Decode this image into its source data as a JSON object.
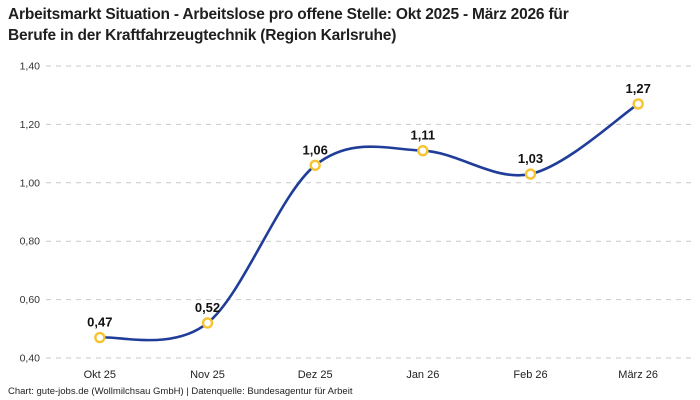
{
  "header": {
    "title_lines": [
      "Arbeitsmarkt Situation - Arbeitslose pro offene Stelle: Okt 2025 - März 2026 für",
      "Berufe in der Kraftfahrzeugtechnik (Region Karlsruhe)"
    ]
  },
  "footer": {
    "credit": "Chart: gute-jobs.de (Wollmilchsau GmbH) | Datenquelle: Bundesagentur für Arbeit"
  },
  "chart_data": {
    "type": "line",
    "title": "Arbeitsmarkt Situation - Arbeitslose pro offene Stelle: Okt 2025 - März 2026 für Berufe in der Kraftfahrzeugtechnik (Region Karlsruhe)",
    "categories": [
      "Okt 25",
      "Nov 25",
      "Dez 25",
      "Jan 26",
      "Feb 26",
      "März 26"
    ],
    "values": [
      0.47,
      0.52,
      1.06,
      1.11,
      1.03,
      1.27
    ],
    "point_labels": [
      "0,47",
      "0,52",
      "1,06",
      "1,11",
      "1,03",
      "1,27"
    ],
    "ytick_values": [
      1.4,
      1.2,
      1.0,
      0.8,
      0.6,
      0.4
    ],
    "ytick_labels": [
      "1,40",
      "1,20",
      "1,00",
      "0,80",
      "0,60",
      "0,40"
    ],
    "ylim": [
      0.4,
      1.4
    ],
    "xlabel": "",
    "ylabel": "",
    "grid": "horizontal-dashed",
    "legend": "none",
    "line_style": "smooth",
    "colors": {
      "line": "#1f3d99",
      "marker_ring": "#f7c331",
      "marker_fill": "#ffffff",
      "grid": "#c9c9c9",
      "title_text": "#1f1f1f",
      "axis_text": "#333333",
      "point_label_text": "#111111"
    }
  }
}
